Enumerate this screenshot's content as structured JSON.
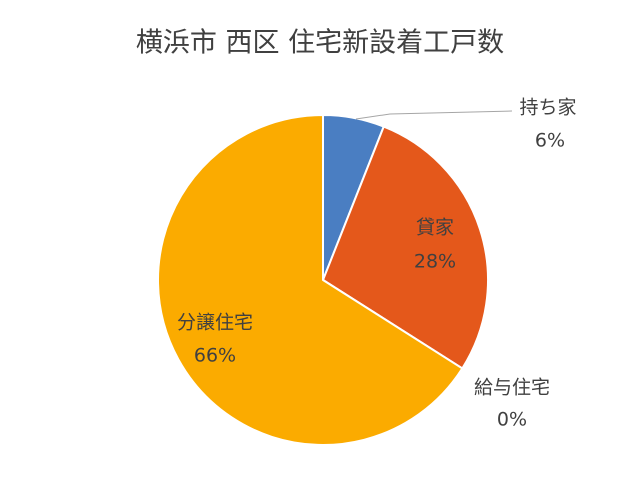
{
  "chart_data": {
    "type": "pie",
    "title": "横浜市 西区 住宅新設着工戸数",
    "categories": [
      "持ち家",
      "貸家",
      "給与住宅",
      "分譲住宅"
    ],
    "values": [
      6,
      28,
      0,
      66
    ],
    "value_labels": [
      "6%",
      "28%",
      "0%",
      "66%"
    ],
    "colors": [
      "#4a7ec2",
      "#e4581b",
      "#a5a5a5",
      "#fbab00"
    ]
  }
}
